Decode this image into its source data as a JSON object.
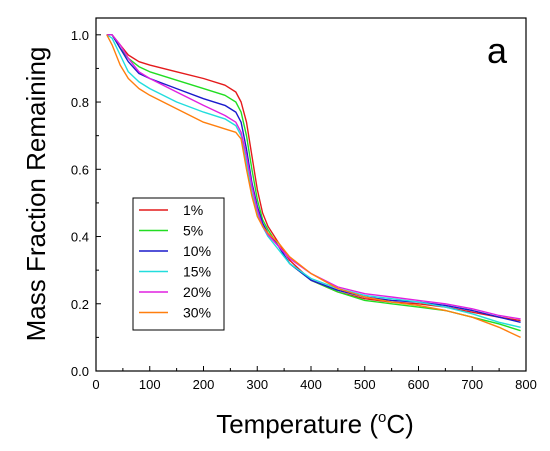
{
  "chart_data": {
    "type": "line",
    "panel_label": "a",
    "xlabel": {
      "main": "Temperature (",
      "sup": "o",
      "unit": "C)"
    },
    "ylabel": "Mass Fraction Remaining",
    "xlim": [
      0,
      800
    ],
    "ylim": [
      0.0,
      1.05
    ],
    "xticks": [
      "0",
      "100",
      "200",
      "300",
      "400",
      "500",
      "600",
      "700",
      "800"
    ],
    "yticks": [
      "0.0",
      "0.2",
      "0.4",
      "0.6",
      "0.8",
      "1.0"
    ],
    "grid": false,
    "legend_position": "lower-left",
    "series": [
      {
        "name": "1%",
        "color": "#e41a1c",
        "x": [
          20,
          30,
          45,
          60,
          80,
          100,
          150,
          200,
          240,
          260,
          270,
          280,
          290,
          300,
          310,
          320,
          340,
          360,
          400,
          450,
          500,
          550,
          600,
          650,
          700,
          750,
          790
        ],
        "y": [
          1.0,
          1.0,
          0.97,
          0.94,
          0.92,
          0.91,
          0.89,
          0.87,
          0.85,
          0.83,
          0.8,
          0.74,
          0.64,
          0.54,
          0.47,
          0.43,
          0.38,
          0.33,
          0.27,
          0.235,
          0.215,
          0.205,
          0.2,
          0.19,
          0.175,
          0.16,
          0.15
        ]
      },
      {
        "name": "5%",
        "color": "#22dd22",
        "x": [
          20,
          30,
          45,
          60,
          80,
          100,
          150,
          200,
          240,
          260,
          270,
          280,
          290,
          300,
          310,
          320,
          340,
          360,
          400,
          450,
          500,
          550,
          600,
          650,
          700,
          750,
          790
        ],
        "y": [
          1.0,
          1.0,
          0.96,
          0.93,
          0.905,
          0.89,
          0.865,
          0.84,
          0.82,
          0.8,
          0.77,
          0.7,
          0.6,
          0.51,
          0.45,
          0.42,
          0.37,
          0.32,
          0.27,
          0.235,
          0.21,
          0.2,
          0.19,
          0.18,
          0.16,
          0.14,
          0.12
        ]
      },
      {
        "name": "10%",
        "color": "#1a1acc",
        "x": [
          20,
          30,
          45,
          60,
          80,
          100,
          150,
          200,
          240,
          260,
          270,
          280,
          290,
          300,
          310,
          320,
          340,
          360,
          400,
          450,
          500,
          550,
          600,
          650,
          700,
          750,
          790
        ],
        "y": [
          1.0,
          1.0,
          0.96,
          0.92,
          0.885,
          0.87,
          0.84,
          0.81,
          0.79,
          0.77,
          0.74,
          0.66,
          0.56,
          0.49,
          0.44,
          0.41,
          0.37,
          0.32,
          0.27,
          0.24,
          0.22,
          0.21,
          0.205,
          0.195,
          0.18,
          0.16,
          0.145
        ]
      },
      {
        "name": "15%",
        "color": "#22dddd",
        "x": [
          20,
          30,
          45,
          60,
          80,
          100,
          150,
          200,
          240,
          260,
          270,
          280,
          290,
          300,
          310,
          320,
          340,
          360,
          400,
          450,
          500,
          550,
          600,
          650,
          700,
          750,
          790
        ],
        "y": [
          1.0,
          0.99,
          0.94,
          0.89,
          0.86,
          0.84,
          0.8,
          0.77,
          0.75,
          0.73,
          0.7,
          0.62,
          0.53,
          0.47,
          0.43,
          0.4,
          0.36,
          0.32,
          0.275,
          0.245,
          0.225,
          0.215,
          0.205,
          0.19,
          0.17,
          0.145,
          0.13
        ]
      },
      {
        "name": "20%",
        "color": "#e020e0",
        "x": [
          20,
          30,
          45,
          60,
          80,
          100,
          150,
          200,
          240,
          260,
          270,
          280,
          290,
          300,
          310,
          320,
          340,
          360,
          400,
          450,
          500,
          550,
          600,
          650,
          700,
          750,
          790
        ],
        "y": [
          1.0,
          1.0,
          0.97,
          0.93,
          0.89,
          0.87,
          0.83,
          0.79,
          0.76,
          0.74,
          0.71,
          0.64,
          0.55,
          0.48,
          0.43,
          0.405,
          0.37,
          0.335,
          0.29,
          0.25,
          0.23,
          0.22,
          0.21,
          0.2,
          0.185,
          0.165,
          0.155
        ]
      },
      {
        "name": "30%",
        "color": "#ff7f0e",
        "x": [
          20,
          30,
          45,
          60,
          80,
          100,
          150,
          200,
          240,
          260,
          270,
          280,
          290,
          300,
          310,
          320,
          340,
          360,
          400,
          450,
          500,
          550,
          600,
          650,
          700,
          750,
          790
        ],
        "y": [
          1.0,
          0.97,
          0.91,
          0.87,
          0.84,
          0.82,
          0.78,
          0.74,
          0.72,
          0.71,
          0.69,
          0.6,
          0.52,
          0.46,
          0.43,
          0.41,
          0.38,
          0.34,
          0.29,
          0.245,
          0.22,
          0.205,
          0.195,
          0.18,
          0.16,
          0.13,
          0.1
        ]
      }
    ]
  }
}
